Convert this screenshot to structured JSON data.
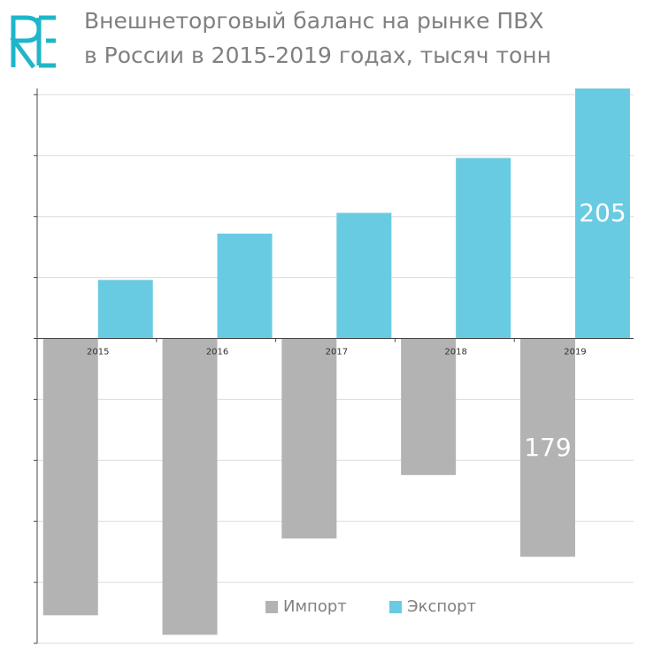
{
  "chart_data": {
    "type": "bar",
    "title": "Внешнеторговый баланс на рынке ПВХ",
    "subtitle": "в России в 2015-2019 годах, тысяч тонн",
    "categories": [
      "2015",
      "2016",
      "2017",
      "2018",
      "2019"
    ],
    "series": [
      {
        "name": "Импорт",
        "color": "#b3b3b3",
        "values": [
          -227,
          -243,
          -164,
          -112,
          -179
        ],
        "value_labels": [
          null,
          null,
          null,
          null,
          "179"
        ]
      },
      {
        "name": "Экспорт",
        "color": "#69cbe2",
        "values": [
          48,
          86,
          103,
          148,
          205
        ],
        "value_labels": [
          null,
          null,
          null,
          null,
          "205"
        ]
      }
    ],
    "ylim": [
      -250,
      205
    ],
    "yticks": [
      -250,
      -200,
      -150,
      -100,
      -50,
      0,
      50,
      100,
      150,
      200
    ],
    "grid": true,
    "legend": "bottom"
  }
}
